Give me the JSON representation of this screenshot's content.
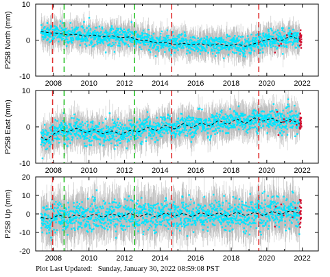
{
  "footer": {
    "label": "Plot Last Updated:",
    "timestamp": "Sunday, January 30, 2022 08:59:08 PST"
  },
  "colors": {
    "daily_positions": "#00e5ff",
    "error_bars": "#bfbfbf",
    "model_trend": "#000000",
    "recent_positions": "#d01030",
    "offset_equipment": "#e03030",
    "offset_earthquake": "#22c022"
  },
  "chart_data": [
    {
      "type": "scatter",
      "ylabel": "P258 North (mm)",
      "xlim": [
        2007.0,
        2022.9
      ],
      "ylim": [
        -10,
        10
      ],
      "xticks": [
        2008,
        2010,
        2012,
        2014,
        2016,
        2018,
        2020,
        2022
      ],
      "yticks": [
        -10,
        0,
        10
      ],
      "grid": false,
      "model": {
        "x": [
          2007.3,
          2007.8,
          2008.3,
          2008.8,
          2009.3,
          2009.8,
          2010.3,
          2010.8,
          2011.3,
          2011.8,
          2012.3,
          2012.8,
          2013.3,
          2013.8,
          2014.3,
          2014.8,
          2015.3,
          2015.8,
          2016.3,
          2016.8,
          2017.3,
          2017.8,
          2018.3,
          2018.8,
          2019.3,
          2019.8,
          2020.3,
          2020.8,
          2021.3,
          2021.8
        ],
        "y": [
          2.4,
          2.0,
          1.9,
          1.4,
          1.6,
          1.1,
          1.4,
          0.9,
          1.2,
          0.7,
          0.9,
          0.0,
          -0.2,
          -0.8,
          -0.6,
          -1.3,
          -0.9,
          -1.3,
          -1.0,
          -1.5,
          -1.0,
          -1.6,
          -1.1,
          -1.7,
          -1.0,
          -0.2,
          0.4,
          -0.2,
          1.1,
          0.3
        ]
      },
      "noise_std": 1.3,
      "offsets_equipment": [
        2007.95,
        2014.65,
        2019.55
      ],
      "offsets_earthquake": [
        2008.6,
        2012.55
      ]
    },
    {
      "type": "scatter",
      "ylabel": "P258 East (mm)",
      "xlim": [
        2007.0,
        2022.9
      ],
      "ylim": [
        -10,
        10
      ],
      "xticks": [
        2008,
        2010,
        2012,
        2014,
        2016,
        2018,
        2020,
        2022
      ],
      "yticks": [
        -10,
        0,
        10
      ],
      "grid": false,
      "model": {
        "x": [
          2007.3,
          2007.6,
          2008.0,
          2008.4,
          2008.8,
          2009.3,
          2009.8,
          2010.3,
          2010.8,
          2011.3,
          2011.8,
          2012.3,
          2012.8,
          2013.3,
          2013.8,
          2014.3,
          2014.8,
          2015.3,
          2015.8,
          2016.3,
          2016.8,
          2017.3,
          2017.8,
          2018.3,
          2018.8,
          2019.3,
          2019.8,
          2020.3,
          2020.8,
          2021.3,
          2021.8
        ],
        "y": [
          -2.8,
          -3.6,
          -2.0,
          -0.9,
          -1.4,
          -0.4,
          -1.6,
          -0.8,
          -1.9,
          -1.1,
          -2.1,
          -1.0,
          -1.3,
          -0.2,
          -1.0,
          0.4,
          -0.6,
          0.9,
          -0.3,
          1.1,
          0.2,
          1.8,
          0.6,
          2.2,
          0.9,
          2.5,
          1.6,
          2.4,
          1.2,
          2.0,
          1.0
        ]
      },
      "noise_std": 1.5,
      "offsets_equipment": [
        2007.95,
        2014.65,
        2019.55
      ],
      "offsets_earthquake": [
        2008.6,
        2012.55
      ]
    },
    {
      "type": "scatter",
      "ylabel": "P258 Up (mm)",
      "xlim": [
        2007.0,
        2022.9
      ],
      "ylim": [
        -20,
        20
      ],
      "xticks": [
        2008,
        2010,
        2012,
        2014,
        2016,
        2018,
        2020,
        2022
      ],
      "yticks": [
        -20,
        -10,
        0,
        10,
        20
      ],
      "grid": false,
      "model": {
        "x": [
          2007.3,
          2007.8,
          2008.3,
          2008.8,
          2009.3,
          2009.8,
          2010.3,
          2010.8,
          2011.3,
          2011.8,
          2012.3,
          2012.8,
          2013.3,
          2013.8,
          2014.3,
          2014.8,
          2015.3,
          2015.8,
          2016.3,
          2016.8,
          2017.3,
          2017.8,
          2018.3,
          2018.8,
          2019.3,
          2019.8,
          2020.3,
          2020.8,
          2021.3,
          2021.8
        ],
        "y": [
          -2.0,
          -2.8,
          -0.6,
          -2.2,
          -0.4,
          -2.0,
          0.0,
          -1.8,
          0.2,
          -1.6,
          0.4,
          -1.6,
          0.2,
          -1.8,
          0.6,
          -1.4,
          0.4,
          -1.6,
          0.8,
          -1.2,
          0.6,
          -1.4,
          1.0,
          -1.0,
          0.8,
          -1.0,
          1.4,
          -0.2,
          1.6,
          0.4
        ]
      },
      "noise_std": 4.0,
      "offsets_equipment": [
        2007.95,
        2014.65,
        2019.55
      ],
      "offsets_earthquake": [
        2008.6,
        2012.55
      ]
    }
  ]
}
